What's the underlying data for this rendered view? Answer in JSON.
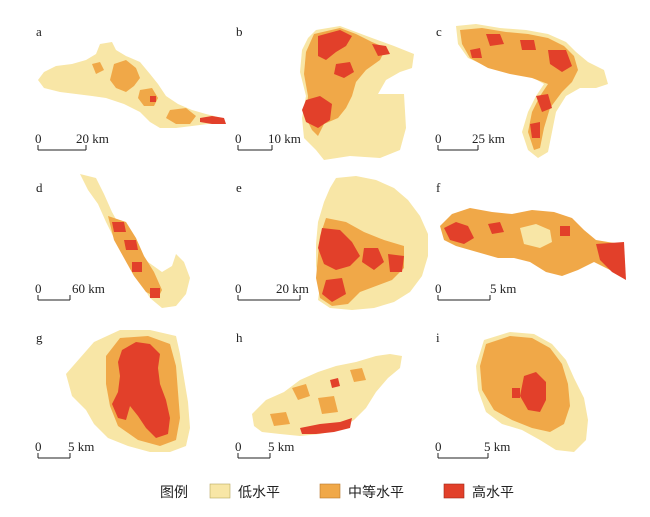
{
  "colors": {
    "low": "#F8E6A6",
    "medium": "#F0A848",
    "high": "#E2402A",
    "ink": "#222222"
  },
  "panels": [
    {
      "id": "a",
      "letter": "a",
      "scale_zero": "0",
      "scale_label": "20 km"
    },
    {
      "id": "b",
      "letter": "b",
      "scale_zero": "0",
      "scale_label": "10 km"
    },
    {
      "id": "c",
      "letter": "c",
      "scale_zero": "0",
      "scale_label": "25 km"
    },
    {
      "id": "d",
      "letter": "d",
      "scale_zero": "0",
      "scale_label": "60 km"
    },
    {
      "id": "e",
      "letter": "e",
      "scale_zero": "0",
      "scale_label": "20 km"
    },
    {
      "id": "f",
      "letter": "f",
      "scale_zero": "0",
      "scale_label": "5 km"
    },
    {
      "id": "g",
      "letter": "g",
      "scale_zero": "0",
      "scale_label": "5 km"
    },
    {
      "id": "h",
      "letter": "h",
      "scale_zero": "0",
      "scale_label": "5 km"
    },
    {
      "id": "i",
      "letter": "i",
      "scale_zero": "0",
      "scale_label": "5 km"
    }
  ],
  "legend": {
    "title": "图例",
    "items": [
      {
        "label": "低水平",
        "color_key": "low"
      },
      {
        "label": "中等水平",
        "color_key": "medium"
      },
      {
        "label": "高水平",
        "color_key": "high"
      }
    ]
  }
}
